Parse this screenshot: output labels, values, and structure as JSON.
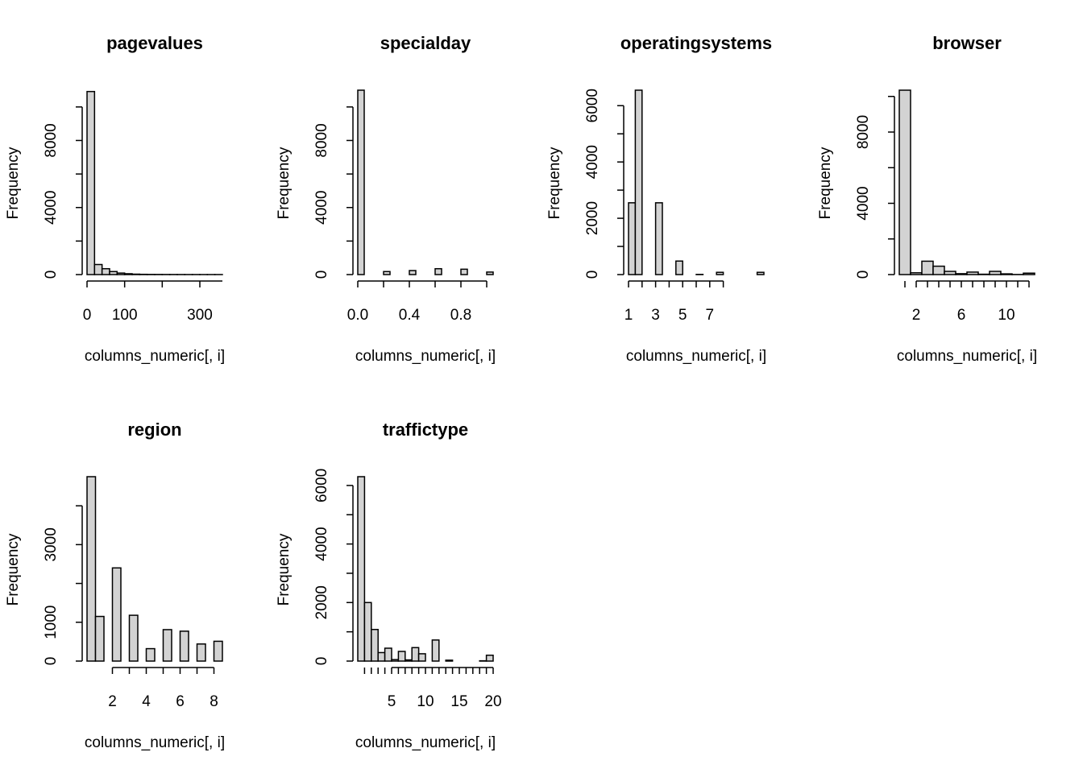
{
  "chart_data": [
    {
      "type": "bar",
      "title": "pagevalues",
      "xlabel": "columns_numeric[, i]",
      "ylabel": "Frequency",
      "bin_start": 0,
      "bin_width": 20,
      "values": [
        10920,
        600,
        350,
        180,
        90,
        50,
        25,
        15,
        10,
        8,
        6,
        5,
        4,
        3,
        3,
        2,
        2,
        2
      ],
      "xticks": [
        0,
        100,
        200,
        300
      ],
      "xtick_labels": [
        "0",
        "100",
        "",
        "300"
      ],
      "xaxis_from": 0,
      "xaxis_to": 360,
      "yticks": [
        0,
        2000,
        4000,
        6000,
        8000,
        10000
      ],
      "ytick_labels": [
        "0",
        "",
        "4000",
        "",
        "8000",
        ""
      ]
    },
    {
      "type": "bar",
      "title": "specialday",
      "xlabel": "columns_numeric[, i]",
      "ylabel": "Frequency",
      "bin_start": 0,
      "bin_width": 0.05,
      "values": [
        11000,
        0,
        0,
        0,
        180,
        0,
        0,
        0,
        240,
        0,
        0,
        0,
        350,
        0,
        0,
        0,
        320,
        0,
        0,
        0,
        150
      ],
      "xticks": [
        0,
        0.2,
        0.4,
        0.6,
        0.8,
        1.0
      ],
      "xtick_labels": [
        "0.0",
        "",
        "0.4",
        "",
        "0.8",
        ""
      ],
      "xaxis_from": 0,
      "xaxis_to": 1,
      "yticks": [
        0,
        2000,
        4000,
        6000,
        8000,
        10000
      ],
      "ytick_labels": [
        "0",
        "",
        "4000",
        "",
        "8000",
        ""
      ]
    },
    {
      "type": "bar",
      "title": "operatingsystems",
      "xlabel": "columns_numeric[, i]",
      "ylabel": "Frequency",
      "bin_start": 1,
      "bin_width": 0.5,
      "values": [
        2550,
        6550,
        0,
        0,
        2550,
        0,
        0,
        480,
        0,
        0,
        6,
        0,
        0,
        80,
        0,
        0,
        0,
        0,
        0,
        80
      ],
      "xticks": [
        1,
        2,
        3,
        4,
        5,
        6,
        7,
        8
      ],
      "xtick_labels": [
        "1",
        "",
        "3",
        "",
        "5",
        "",
        "7",
        ""
      ],
      "xaxis_from": 1,
      "xaxis_to": 8,
      "yticks": [
        0,
        1000,
        2000,
        3000,
        4000,
        5000,
        6000
      ],
      "ytick_labels": [
        "0",
        "",
        "2000",
        "",
        "4000",
        "",
        "6000"
      ]
    },
    {
      "type": "bar",
      "title": "browser",
      "xlabel": "columns_numeric[, i]",
      "ylabel": "Frequency",
      "bin_start": 0.5,
      "bin_width": 1,
      "values": [
        10350,
        100,
        750,
        470,
        180,
        50,
        140,
        20,
        180,
        40,
        5,
        80
      ],
      "xticks": [
        1,
        2,
        3,
        4,
        5,
        6,
        7,
        8,
        9,
        10,
        11,
        12
      ],
      "xtick_labels": [
        "",
        "2",
        "",
        "",
        "",
        "6",
        "",
        "",
        "",
        "10",
        "",
        ""
      ],
      "xaxis_from": 2,
      "xaxis_to": 12,
      "yticks": [
        0,
        2000,
        4000,
        6000,
        8000,
        10000
      ],
      "ytick_labels": [
        "0",
        "",
        "4000",
        "",
        "8000",
        ""
      ]
    },
    {
      "type": "bar",
      "title": "region",
      "xlabel": "columns_numeric[, i]",
      "ylabel": "Frequency",
      "bin_start": 0.5,
      "bin_width": 0.5,
      "values": [
        4750,
        1150,
        0,
        2400,
        0,
        1180,
        0,
        320,
        0,
        810,
        0,
        770,
        0,
        440,
        0,
        510
      ],
      "xticks": [
        2,
        3,
        4,
        5,
        6,
        7,
        8
      ],
      "xtick_labels": [
        "2",
        "",
        "4",
        "",
        "6",
        "",
        "8"
      ],
      "xaxis_from": 2,
      "xaxis_to": 8,
      "yticks": [
        0,
        1000,
        2000,
        3000,
        4000
      ],
      "ytick_labels": [
        "0",
        "1000",
        "",
        "3000",
        ""
      ]
    },
    {
      "type": "bar",
      "title": "traffictype",
      "xlabel": "columns_numeric[, i]",
      "ylabel": "Frequency",
      "bin_start": 0,
      "bin_width": 1,
      "values": [
        6300,
        2000,
        1080,
        290,
        440,
        50,
        330,
        40,
        460,
        250,
        0,
        720,
        0,
        30,
        0,
        0,
        0,
        0,
        10,
        200
      ],
      "xticks": [
        1,
        2,
        3,
        4,
        5,
        6,
        7,
        8,
        9,
        10,
        11,
        12,
        13,
        14,
        15,
        16,
        17,
        18,
        19,
        20
      ],
      "xtick_labels": [
        "",
        "",
        "",
        "",
        "5",
        "",
        "",
        "",
        "",
        "10",
        "",
        "",
        "",
        "",
        "15",
        "",
        "",
        "",
        "",
        "20"
      ],
      "xaxis_from": 5,
      "xaxis_to": 20,
      "yticks": [
        0,
        1000,
        2000,
        3000,
        4000,
        5000,
        6000
      ],
      "ytick_labels": [
        "0",
        "",
        "2000",
        "",
        "4000",
        "",
        "6000"
      ]
    }
  ]
}
